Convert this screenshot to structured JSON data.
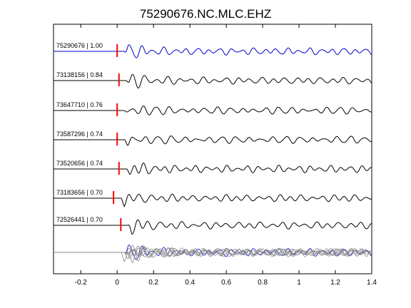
{
  "chart_data": {
    "type": "line",
    "title": "75290676.NC.MLC.EHZ",
    "xlabel": "",
    "ylabel": "",
    "xlim": [
      -0.35,
      1.4
    ],
    "x_ticks": [
      -0.2,
      0,
      0.2,
      0.4,
      0.6,
      0.8,
      1,
      1.2,
      1.4
    ],
    "x_tick_labels": [
      "-0.2",
      "0",
      "0.2",
      "0.4",
      "0.6",
      "0.8",
      "1",
      "1.2",
      "1.4"
    ],
    "grid": false,
    "colors": {
      "reference": "#0000cc",
      "trace": "#000000",
      "pick": "#ff0000",
      "stack_other": "#888888"
    },
    "series": [
      {
        "name": "75290676 | 1.00",
        "pick_time": 0.0,
        "color": "#0000cc",
        "seed": 1
      },
      {
        "name": "73138156 | 0.84",
        "pick_time": 0.01,
        "color": "#000000",
        "seed": 2
      },
      {
        "name": "73647710 | 0.76",
        "pick_time": 0.0,
        "color": "#000000",
        "seed": 3
      },
      {
        "name": "73587296 | 0.74",
        "pick_time": 0.0,
        "color": "#000000",
        "seed": 4
      },
      {
        "name": "73520656 | 0.74",
        "pick_time": 0.01,
        "color": "#000000",
        "seed": 5
      },
      {
        "name": "73183656 | 0.70",
        "pick_time": -0.02,
        "color": "#000000",
        "seed": 6
      },
      {
        "name": "72526441 | 0.70",
        "pick_time": 0.02,
        "color": "#000000",
        "seed": 7
      }
    ],
    "overlay": {
      "label": "",
      "description_visible": false
    }
  }
}
